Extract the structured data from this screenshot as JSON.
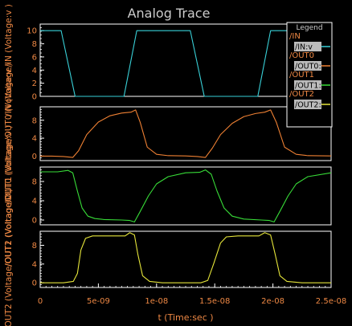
{
  "title": "Analog Trace",
  "xlabel": "t (Time:sec )",
  "legend": {
    "title": "Legend",
    "items": [
      {
        "label": "/IN",
        "swatch_label": "/IN:v",
        "color": "#39d1d8"
      },
      {
        "label": "/OUT0",
        "swatch_label": "/OUT0:v",
        "color": "#ee8033"
      },
      {
        "label": "/OUT1",
        "swatch_label": "/OUT1:v",
        "color": "#38dc38"
      },
      {
        "label": "/OUT2",
        "swatch_label": "/OUT2:v",
        "color": "#e6e63a"
      }
    ]
  },
  "colors": {
    "background": "#000000",
    "axis": "#ffffff",
    "label": "#ee8844",
    "title": "#cccccc",
    "legend_swatch": "#bbbbbb"
  },
  "chart_data": {
    "type": "line",
    "xlim": [
      0,
      2.5e-08
    ],
    "x_ticks": [
      {
        "v": 0,
        "label": "0"
      },
      {
        "v": 5e-09,
        "label": "5e-09"
      },
      {
        "v": 1e-08,
        "label": "1e-08"
      },
      {
        "v": 1.5e-08,
        "label": "1.5e-08"
      },
      {
        "v": 2e-08,
        "label": "2e-08"
      },
      {
        "v": 2.5e-08,
        "label": "2.5e-08"
      }
    ],
    "panels": [
      {
        "ylabel": "/IN (Voltage/IN (Voltage:v )",
        "ylim": [
          0,
          11
        ],
        "y_ticks": [
          {
            "v": 0,
            "label": "0"
          },
          {
            "v": 2,
            "label": "2"
          },
          {
            "v": 4,
            "label": "4"
          },
          {
            "v": 6,
            "label": "6"
          },
          {
            "v": 8,
            "label": "8"
          },
          {
            "v": 10,
            "label": "10"
          }
        ],
        "series": [
          {
            "name": "/IN:v",
            "color": "#39d1d8",
            "x": [
              0,
              1.8e-09,
              3e-09,
              7.2e-09,
              8.3e-09,
              1.29e-08,
              1.41e-08,
              1.87e-08,
              1.98e-08,
              2.5e-08
            ],
            "y": [
              10,
              10,
              0,
              0,
              10,
              10,
              0,
              0,
              10,
              10
            ]
          }
        ]
      },
      {
        "ylabel": "/OUT0 (Voltage/OUT0 (Voltage:v )",
        "ylim": [
          -1,
          11
        ],
        "y_ticks": [
          {
            "v": 0,
            "label": "0"
          },
          {
            "v": 4,
            "label": "4"
          },
          {
            "v": 8,
            "label": "8"
          }
        ],
        "series": [
          {
            "name": "/OUT0:v",
            "color": "#ee8033",
            "x": [
              0,
              1e-09,
              2e-09,
              2.8e-09,
              3.3e-09,
              4e-09,
              5e-09,
              6e-09,
              7e-09,
              7.8e-09,
              8.2e-09,
              8.6e-09,
              9.2e-09,
              1e-08,
              1.1e-08,
              1.25e-08,
              1.35e-08,
              1.42e-08,
              1.48e-08,
              1.55e-08,
              1.65e-08,
              1.75e-08,
              1.85e-08,
              1.93e-08,
              1.98e-08,
              2.03e-08,
              2.1e-08,
              2.2e-08,
              2.3e-08,
              2.5e-08
            ],
            "y": [
              0,
              0,
              -0.1,
              -0.3,
              1.2,
              4.8,
              7.6,
              9.0,
              9.6,
              9.8,
              10.3,
              7.5,
              2.0,
              0.4,
              0.1,
              0.05,
              -0.1,
              -0.3,
              1.8,
              4.8,
              7.3,
              8.8,
              9.5,
              9.8,
              10.3,
              7.5,
              2.0,
              0.4,
              0.1,
              0.05
            ]
          }
        ]
      },
      {
        "ylabel": "/OUT1 (Voltage/OUT1 (Voltage:v )",
        "ylim": [
          -1,
          11
        ],
        "y_ticks": [
          {
            "v": 0,
            "label": "0"
          },
          {
            "v": 4,
            "label": "4"
          },
          {
            "v": 8,
            "label": "8"
          }
        ],
        "series": [
          {
            "name": "/OUT1:v",
            "color": "#38dc38",
            "x": [
              0,
              1.5e-09,
              2.4e-09,
              2.8e-09,
              3.2e-09,
              3.6e-09,
              4.1e-09,
              4.7e-09,
              5.5e-09,
              7e-09,
              7.7e-09,
              8.1e-09,
              8.6e-09,
              9.3e-09,
              1e-08,
              1.1e-08,
              1.25e-08,
              1.37e-08,
              1.42e-08,
              1.47e-08,
              1.52e-08,
              1.58e-08,
              1.65e-08,
              1.75e-08,
              1.9e-08,
              1.97e-08,
              2.01e-08,
              2.06e-08,
              2.13e-08,
              2.2e-08,
              2.3e-08,
              2.5e-08
            ],
            "y": [
              10,
              10,
              10.3,
              9.8,
              6.0,
              2.5,
              0.8,
              0.3,
              0.1,
              0,
              -0.1,
              -0.4,
              1.8,
              5.0,
              7.5,
              9.0,
              9.8,
              9.9,
              10.4,
              9.5,
              6.0,
              2.5,
              0.8,
              0.2,
              0,
              -0.1,
              -0.4,
              1.8,
              5.0,
              7.5,
              9.0,
              9.8
            ]
          }
        ]
      },
      {
        "ylabel": "/OUT2 (Voltage/OUT2 (Voltage:v )",
        "ylim": [
          -1,
          11
        ],
        "y_ticks": [
          {
            "v": 0,
            "label": "0"
          },
          {
            "v": 4,
            "label": "4"
          },
          {
            "v": 8,
            "label": "8"
          }
        ],
        "series": [
          {
            "name": "/OUT2:v",
            "color": "#e6e63a",
            "x": [
              0,
              2e-09,
              2.85e-09,
              3.2e-09,
              3.5e-09,
              3.9e-09,
              4.5e-09,
              6e-09,
              7.3e-09,
              7.7e-09,
              8.1e-09,
              8.4e-09,
              8.8e-09,
              9.4e-09,
              1.05e-08,
              1.38e-08,
              1.44e-08,
              1.49e-08,
              1.55e-08,
              1.6e-08,
              1.7e-08,
              1.88e-08,
              1.93e-08,
              1.98e-08,
              2.02e-08,
              2.06e-08,
              2.12e-08,
              2.25e-08,
              2.5e-08
            ],
            "y": [
              0,
              0,
              0.3,
              2.0,
              7.0,
              9.5,
              10,
              10,
              10,
              10.7,
              10.2,
              6.0,
              1.5,
              0.3,
              0,
              0,
              0.5,
              4.0,
              8.5,
              9.8,
              10,
              10,
              10.7,
              10.2,
              6.0,
              1.5,
              0.3,
              0,
              0
            ]
          }
        ]
      }
    ]
  }
}
